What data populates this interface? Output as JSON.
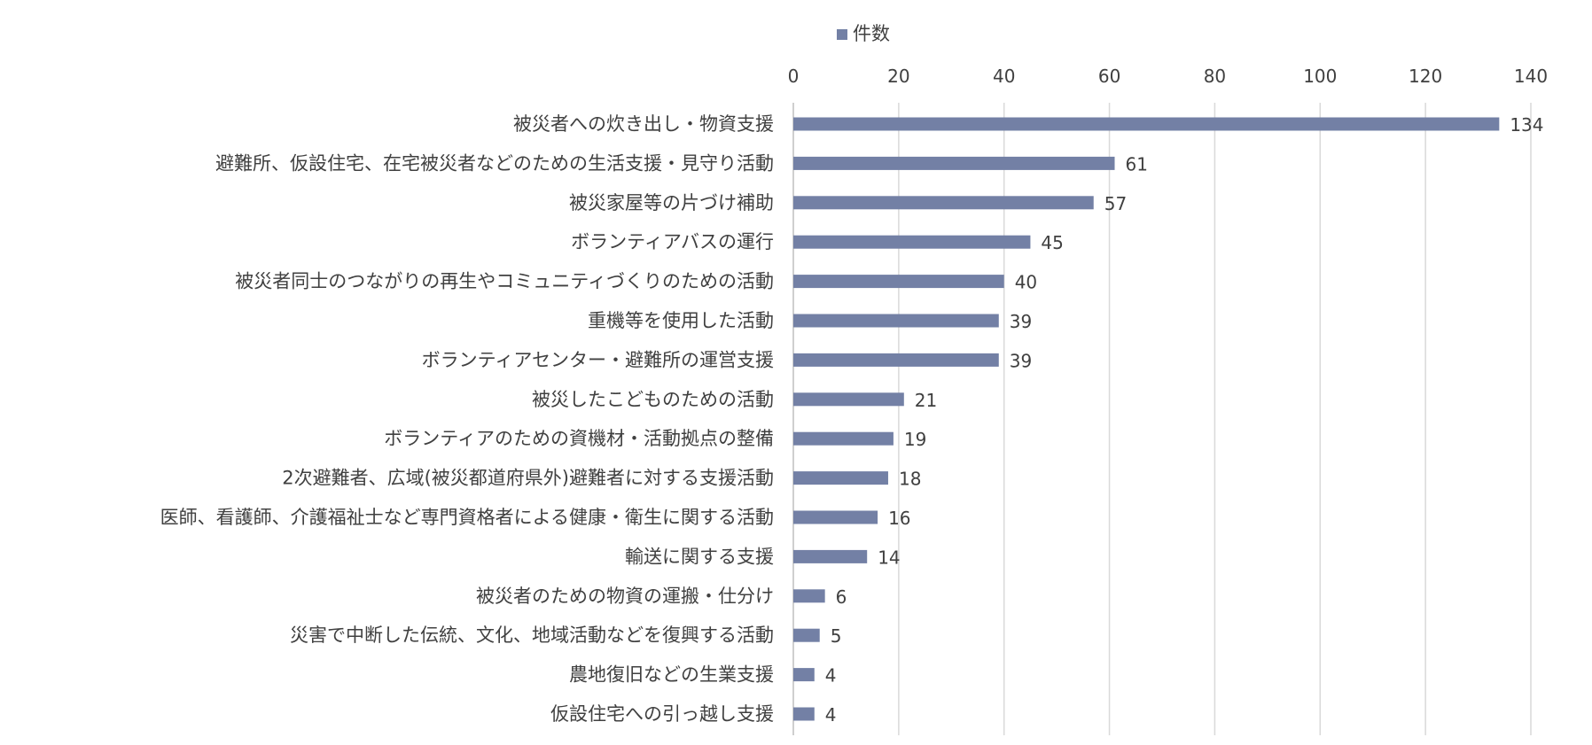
{
  "chart_data": {
    "type": "bar",
    "orientation": "horizontal",
    "title": "",
    "xlabel": "",
    "ylabel": "",
    "xlim": [
      0,
      140
    ],
    "x_ticks": [
      0,
      20,
      40,
      60,
      80,
      100,
      120,
      140
    ],
    "grid": true,
    "legend_position": "top",
    "axis_position": "top",
    "bar_color": "#7380a5",
    "categories": [
      "被災者への炊き出し・物資支援",
      "避難所、仮設住宅、在宅被災者などのための生活支援・見守り活動",
      "被災家屋等の片づけ補助",
      "ボランティアバスの運行",
      "被災者同士のつながりの再生やコミュニティづくりのための活動",
      "重機等を使用した活動",
      "ボランティアセンター・避難所の運営支援",
      "被災したこどものための活動",
      "ボランティアのための資機材・活動拠点の整備",
      "2次避難者、広域(被災都道府県外)避難者に対する支援活動",
      "医師、看護師、介護福祉士など専門資格者による健康・衛生に関する活動",
      "輸送に関する支援",
      "被災者のための物資の運搬・仕分け",
      "災害で中断した伝統、文化、地域活動などを復興する活動",
      "農地復旧などの生業支援",
      "仮設住宅への引っ越し支援"
    ],
    "series": [
      {
        "name": "件数",
        "values": [
          134,
          61,
          57,
          45,
          40,
          39,
          39,
          21,
          19,
          18,
          16,
          14,
          6,
          5,
          4,
          4
        ]
      }
    ]
  }
}
